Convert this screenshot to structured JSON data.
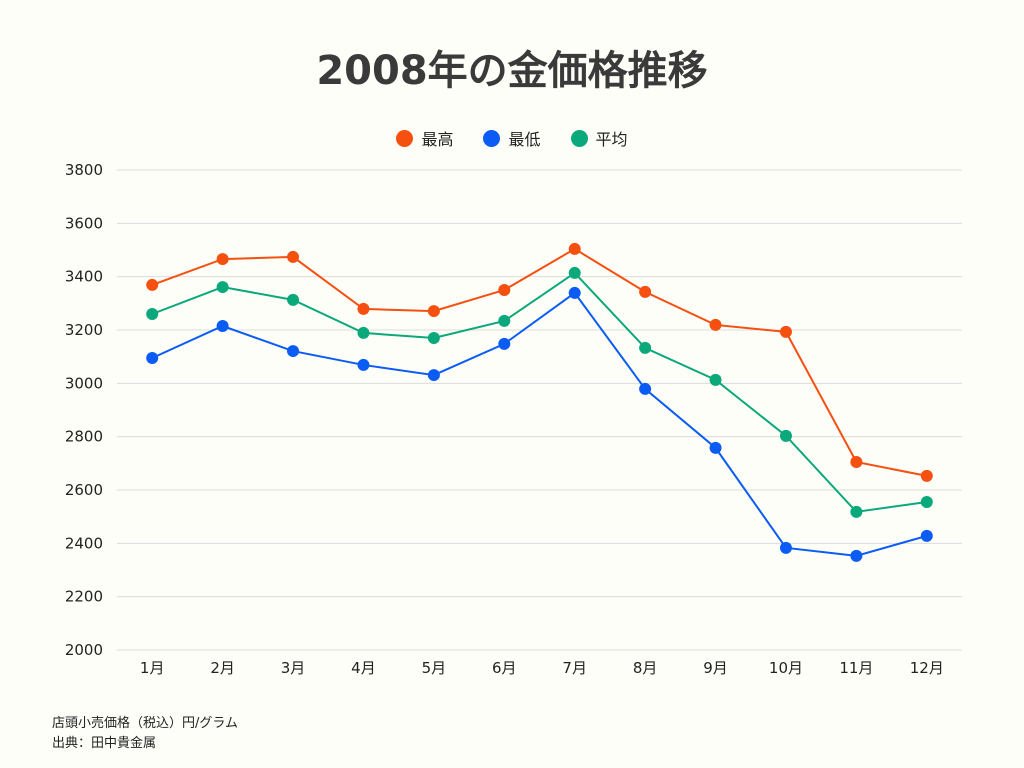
{
  "chart_data": {
    "type": "line",
    "title": "2008年の金価格推移",
    "categories": [
      "1月",
      "2月",
      "3月",
      "4月",
      "5月",
      "6月",
      "7月",
      "8月",
      "9月",
      "10月",
      "11月",
      "12月"
    ],
    "series": [
      {
        "name": "最高",
        "color": "#f5500f",
        "values": [
          3369,
          3466,
          3474,
          3279,
          3271,
          3350,
          3504,
          3343,
          3219,
          3193,
          2705,
          2653
        ]
      },
      {
        "name": "最低",
        "color": "#0a5cf5",
        "values": [
          3095,
          3215,
          3121,
          3069,
          3031,
          3148,
          3339,
          2979,
          2758,
          2383,
          2353,
          2428
        ]
      },
      {
        "name": "平均",
        "color": "#0aa87a",
        "values": [
          3260,
          3361,
          3313,
          3189,
          3170,
          3234,
          3414,
          3133,
          3013,
          2803,
          2518,
          2555
        ]
      }
    ],
    "ylim": [
      2000,
      3800
    ],
    "yticks": [
      2000,
      2200,
      2400,
      2600,
      2800,
      3000,
      3200,
      3400,
      3600,
      3800
    ],
    "grid": true,
    "legend_position": "top"
  },
  "notes": {
    "unit": "店頭小売価格（税込）円/グラム",
    "source": "出典：田中貴金属"
  }
}
